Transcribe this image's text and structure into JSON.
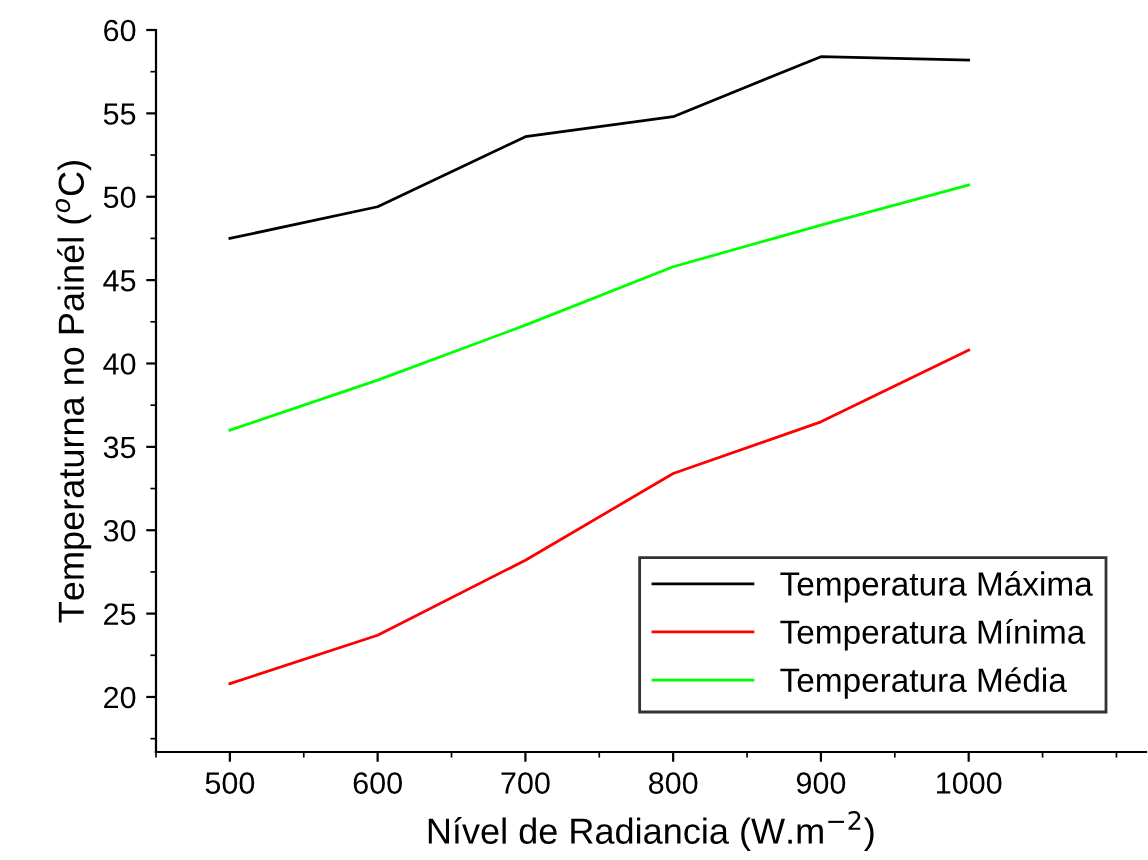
{
  "chart_data": {
    "type": "line",
    "xlabel": "Nível de Radiancia (W.m$^{−2}$)",
    "ylabel": "Temperaturna no Painél ($^{o}$C)",
    "x": [
      500,
      600,
      700,
      800,
      900,
      1000
    ],
    "series": [
      {
        "name": "Temperatura Máxima",
        "color": "#000000",
        "values": [
          47.5,
          49.4,
          53.6,
          54.8,
          58.4,
          58.2
        ]
      },
      {
        "name": "Temperatura Mínima",
        "color": "#ff0000",
        "values": [
          20.8,
          23.7,
          28.2,
          33.4,
          36.5,
          40.8
        ]
      },
      {
        "name": "Temperatura Média",
        "color": "#00ff00",
        "values": [
          36.0,
          39.0,
          42.3,
          45.8,
          48.3,
          50.7
        ]
      }
    ],
    "xlim": [
      450,
      1120
    ],
    "ylim": [
      16.7,
      60
    ],
    "xticks": [
      500,
      600,
      700,
      800,
      900,
      1000
    ],
    "yticks": [
      20,
      25,
      30,
      35,
      40,
      45,
      50,
      55,
      60
    ],
    "grid": false,
    "legend": "bottom right",
    "marker": "none",
    "line_style": "solid"
  }
}
